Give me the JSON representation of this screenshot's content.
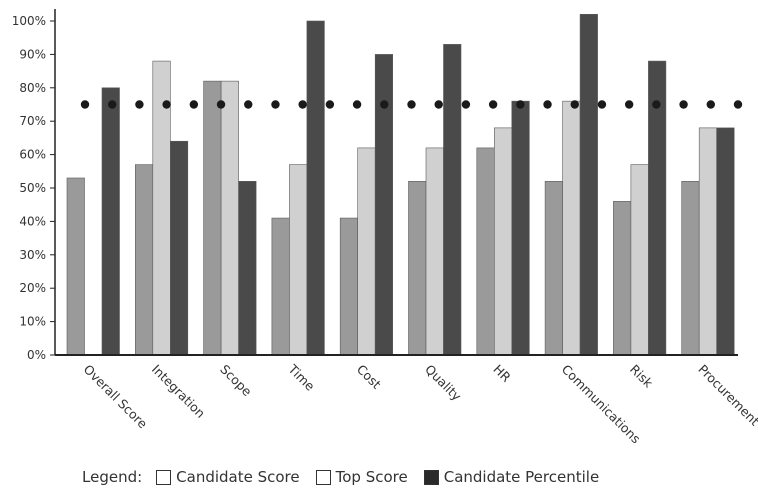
{
  "chart_data": {
    "type": "bar",
    "title": "",
    "xlabel": "",
    "ylabel": "",
    "ylim": [
      0,
      100
    ],
    "yticks": [
      "0%",
      "10%",
      "20%",
      "30%",
      "40%",
      "50%",
      "60%",
      "70%",
      "80%",
      "90%",
      "100%"
    ],
    "categories": [
      "Overall Score",
      "Integration",
      "Scope",
      "Time",
      "Cost",
      "Quality",
      "HR",
      "Communications",
      "Risk",
      "Procurement"
    ],
    "series": [
      {
        "name": "Candidate Score",
        "color": "#9a9a9a",
        "values": [
          53,
          57,
          82,
          41,
          41,
          52,
          62,
          52,
          46,
          52
        ]
      },
      {
        "name": "Top Score",
        "color": "#d0d0d0",
        "values": [
          null,
          88,
          82,
          57,
          62,
          62,
          68,
          76,
          57,
          68
        ]
      },
      {
        "name": "Candidate Percentile",
        "color": "#4a4a4a",
        "values": [
          80,
          64,
          52,
          100,
          90,
          93,
          76,
          102,
          88,
          68
        ]
      }
    ],
    "reference_line": {
      "value": 75,
      "style": "dotted",
      "color": "#1a1a1a"
    },
    "grid": false,
    "legend": {
      "title": "Legend:",
      "placement": "bottom"
    }
  }
}
